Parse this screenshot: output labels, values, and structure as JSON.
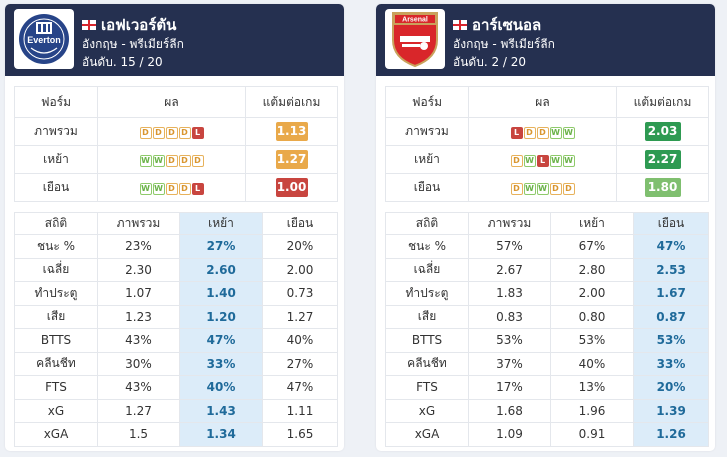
{
  "labels": {
    "form_col": "ฟอร์ม",
    "result_col": "ผล",
    "ppg_col": "แต้มต่อเกม",
    "stats_col": "สถิติ",
    "overall_col": "ภาพรวม",
    "home_col": "เหย้า",
    "away_col": "เยือน"
  },
  "teams": [
    {
      "name": "เอฟเวอร์ตัน",
      "league": "อังกฤษ - พรีเมียร์ลีก",
      "rank": "อันดับ. 15 / 20",
      "logo_icon": "everton-crest-icon",
      "logo_text": "Everton",
      "form": [
        {
          "label": "ภาพรวม",
          "results": [
            "D",
            "D",
            "D",
            "D",
            "L"
          ],
          "ppg": "1.13",
          "ppg_color": "#e9a94a"
        },
        {
          "label": "เหย้า",
          "results": [
            "W",
            "W",
            "D",
            "D",
            "D"
          ],
          "ppg": "1.27",
          "ppg_color": "#e9a94a"
        },
        {
          "label": "เยือน",
          "results": [
            "W",
            "W",
            "D",
            "D",
            "L"
          ],
          "ppg": "1.00",
          "ppg_color": "#c8453f"
        }
      ],
      "highlight": "home",
      "stats": [
        {
          "label": "ชนะ %",
          "overall": "23%",
          "home": "27%",
          "away": "20%"
        },
        {
          "label": "เฉลี่ย",
          "overall": "2.30",
          "home": "2.60",
          "away": "2.00"
        },
        {
          "label": "ทำประตู",
          "overall": "1.07",
          "home": "1.40",
          "away": "0.73"
        },
        {
          "label": "เสีย",
          "overall": "1.23",
          "home": "1.20",
          "away": "1.27"
        },
        {
          "label": "BTTS",
          "overall": "43%",
          "home": "47%",
          "away": "40%"
        },
        {
          "label": "คลีนชีท",
          "overall": "30%",
          "home": "33%",
          "away": "27%"
        },
        {
          "label": "FTS",
          "overall": "43%",
          "home": "40%",
          "away": "47%"
        },
        {
          "label": "xG",
          "overall": "1.27",
          "home": "1.43",
          "away": "1.11"
        },
        {
          "label": "xGA",
          "overall": "1.5",
          "home": "1.34",
          "away": "1.65"
        }
      ]
    },
    {
      "name": "อาร์เซนอล",
      "league": "อังกฤษ - พรีเมียร์ลีก",
      "rank": "อันดับ. 2 / 20",
      "logo_icon": "arsenal-crest-icon",
      "logo_text": "Arsenal",
      "form": [
        {
          "label": "ภาพรวม",
          "results": [
            "L",
            "D",
            "D",
            "W",
            "W"
          ],
          "ppg": "2.03",
          "ppg_color": "#2e9a52"
        },
        {
          "label": "เหย้า",
          "results": [
            "D",
            "W",
            "L",
            "W",
            "W"
          ],
          "ppg": "2.27",
          "ppg_color": "#2e9a52"
        },
        {
          "label": "เยือน",
          "results": [
            "D",
            "W",
            "W",
            "D",
            "D"
          ],
          "ppg": "1.80",
          "ppg_color": "#7fbf6f"
        }
      ],
      "highlight": "away",
      "stats": [
        {
          "label": "ชนะ %",
          "overall": "57%",
          "home": "67%",
          "away": "47%"
        },
        {
          "label": "เฉลี่ย",
          "overall": "2.67",
          "home": "2.80",
          "away": "2.53"
        },
        {
          "label": "ทำประตู",
          "overall": "1.83",
          "home": "2.00",
          "away": "1.67"
        },
        {
          "label": "เสีย",
          "overall": "0.83",
          "home": "0.80",
          "away": "0.87"
        },
        {
          "label": "BTTS",
          "overall": "53%",
          "home": "53%",
          "away": "53%"
        },
        {
          "label": "คลีนชีท",
          "overall": "37%",
          "home": "40%",
          "away": "33%"
        },
        {
          "label": "FTS",
          "overall": "17%",
          "home": "13%",
          "away": "20%"
        },
        {
          "label": "xG",
          "overall": "1.68",
          "home": "1.96",
          "away": "1.39"
        },
        {
          "label": "xGA",
          "overall": "1.09",
          "home": "0.91",
          "away": "1.26"
        }
      ]
    }
  ]
}
